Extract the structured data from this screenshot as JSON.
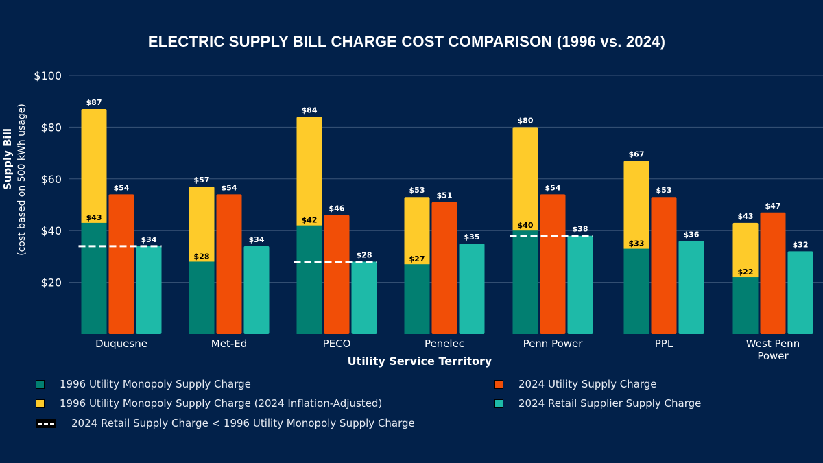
{
  "chart_data": {
    "type": "bar",
    "title": "ELECTRIC SUPPLY BILL CHARGE COST COMPARISON (1996 vs. 2024)",
    "xlabel": "Utility Service Territory",
    "ylabel": "Supply Bill",
    "ylabel_sub": "(cost based on 500 kWh usage)",
    "ylim": [
      0,
      100
    ],
    "yticks": [
      20,
      40,
      60,
      80,
      100
    ],
    "ytick_labels": [
      "$20",
      "$40",
      "$60",
      "$80",
      "$100"
    ],
    "grid": true,
    "categories": [
      "Duquesne",
      "Met-Ed",
      "PECO",
      "Penelec",
      "Penn Power",
      "PPL",
      "West Penn Power"
    ],
    "category_lines": [
      [
        "Duquesne"
      ],
      [
        "Met-Ed"
      ],
      [
        "PECO"
      ],
      [
        "Penelec"
      ],
      [
        "Penn Power"
      ],
      [
        "PPL"
      ],
      [
        "West Penn",
        "Power"
      ]
    ],
    "series": [
      {
        "name": "1996 Utility Monopoly Supply Charge",
        "color": "#027f71",
        "values": [
          43,
          28,
          42,
          27,
          40,
          33,
          22
        ]
      },
      {
        "name": "1996 Utility Monopoly Supply Charge (2024 Inflation-Adjusted)",
        "color": "#fecb2a",
        "values": [
          87,
          57,
          84,
          53,
          80,
          67,
          43
        ]
      },
      {
        "name": "2024 Utility Supply Charge",
        "color": "#f14e07",
        "values": [
          54,
          54,
          46,
          51,
          54,
          53,
          47
        ]
      },
      {
        "name": "2024 Retail Supplier Supply Charge",
        "color": "#1ebaa8",
        "values": [
          34,
          34,
          28,
          35,
          38,
          36,
          32
        ]
      }
    ],
    "dashed_line": {
      "name": "2024 Retail Supply Charge < 1996 Utility Monopoly Supply Charge",
      "color": "#ffffff",
      "categories": [
        "Duquesne",
        "PECO",
        "Penn Power"
      ],
      "values": [
        34,
        28,
        38
      ]
    },
    "legend": {
      "left": [
        {
          "label": "1996 Utility Monopoly Supply Charge",
          "color": "#027f71",
          "kind": "swatch"
        },
        {
          "label": "1996 Utility Monopoly Supply Charge (2024 Inflation-Adjusted)",
          "color": "#fecb2a",
          "kind": "swatch"
        },
        {
          "label": "2024 Retail Supply Charge < 1996 Utility Monopoly Supply Charge",
          "kind": "dash"
        }
      ],
      "right": [
        {
          "label": "2024 Utility Supply Charge",
          "color": "#f14e07",
          "kind": "swatch"
        },
        {
          "label": "2024 Retail Supplier Supply Charge",
          "color": "#1ebaa8",
          "kind": "swatch"
        }
      ]
    },
    "background": "#02214a"
  }
}
